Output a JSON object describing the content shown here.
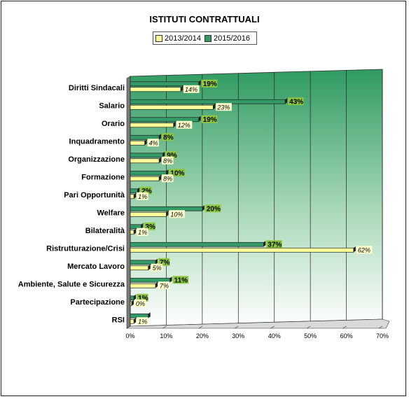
{
  "chart_data": {
    "type": "bar",
    "orientation": "horizontal",
    "title": "ISTITUTI CONTRATTUALI",
    "categories": [
      "Diritti Sindacali",
      "Salario",
      "Orario",
      "Inquadramento",
      "Organizzazione",
      "Formazione",
      "Pari Opportunità",
      "Welfare",
      "Bilateralità",
      "Ristrutturazione/Crisi",
      "Mercato Lavoro",
      "Ambiente, Salute e Sicurezza",
      "Partecipazione",
      "RSI"
    ],
    "series": [
      {
        "name": "2013/2014",
        "color": "#ffff99",
        "values": [
          14,
          23,
          12,
          4,
          8,
          8,
          1,
          10,
          1,
          62,
          5,
          7,
          0,
          1
        ],
        "labels": [
          "14%",
          "23%",
          "12%",
          "4%",
          "8%",
          "8%",
          "1%",
          "10%",
          "1%",
          "62%",
          "5%",
          "7%",
          "0%",
          "1%"
        ]
      },
      {
        "name": "2015/2016",
        "color": "#339966",
        "values": [
          19,
          43,
          19,
          8,
          9,
          10,
          2,
          20,
          3,
          37,
          7,
          11,
          1,
          5
        ],
        "labels": [
          "19%",
          "43%",
          "19%",
          "8%",
          "9%",
          "10%",
          "2%",
          "20%",
          "3%",
          "37%",
          "7%",
          "11%",
          "1%",
          ""
        ]
      }
    ],
    "xlim": [
      0,
      70
    ],
    "xticks": [
      "0%",
      "10%",
      "20%",
      "30%",
      "40%",
      "50%",
      "60%",
      "70%"
    ],
    "grid": true,
    "legend_position": "top"
  }
}
